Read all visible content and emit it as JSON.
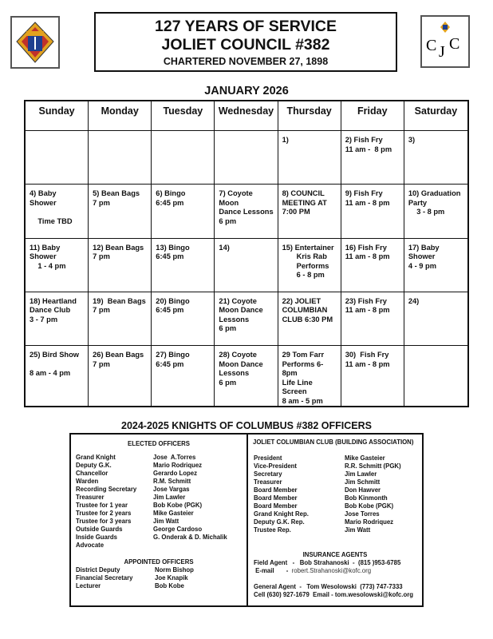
{
  "header": {
    "line1": "127 YEARS OF SERVICE",
    "line2": "JOLIET COUNCIL #382",
    "line3": "CHARTERED NOVEMBER 27, 1898"
  },
  "logos": {
    "left": "K of C",
    "right": "CJC"
  },
  "calendar": {
    "title": "JANUARY 2026",
    "days": [
      "Sunday",
      "Monday",
      "Tuesday",
      "Wednesday",
      "Thursday",
      "Friday",
      "Saturday"
    ],
    "cells": [
      "",
      "",
      "",
      "",
      "1)",
      "2) Fish Fry\n11 am -  8 pm",
      "3)",
      "4) Baby Shower\n\n    Time TBD",
      "5) Bean Bags\n7 pm",
      "6) Bingo\n6:45 pm",
      "7) Coyote Moon\nDance Lessons\n6 pm",
      "8) COUNCIL\nMEETING AT\n7:00 PM",
      "9) Fish Fry\n11 am - 8 pm",
      "10) Graduation\nParty\n    3 - 8 pm",
      "11) Baby\nShower\n    1 - 4 pm",
      "12) Bean Bags\n7 pm",
      "13) Bingo\n6:45 pm",
      "14)",
      "15) Entertainer\n       Kris Rab\n       Performs\n       6 - 8 pm",
      "16) Fish Fry\n11 am - 8 pm",
      "17) Baby\nShower\n4 - 9 pm",
      "18) Heartland\nDance Club\n3 - 7 pm",
      "19)  Bean Bags\n7 pm",
      "20) Bingo\n6:45 pm",
      "21) Coyote\nMoon Dance\nLessons\n6 pm",
      "22) JOLIET\nCOLUMBIAN\nCLUB 6:30 PM",
      "23) Fish Fry\n11 am - 8 pm",
      "24)",
      "25) Bird Show\n\n8 am - 4 pm",
      "26) Bean Bags\n7 pm",
      "27) Bingo\n6:45 pm",
      "28) Coyote\nMoon Dance\nLessons\n6 pm",
      "29 Tom Farr\nPerforms 6-8pm\nLife Line Screen\n8 am - 5 pm",
      "30)  Fish Fry\n11 am - 8 pm",
      ""
    ]
  },
  "officers": {
    "title": "2024-2025 KNIGHTS OF COLUMBUS #382 OFFICERS",
    "elected_title": "ELECTED OFFICERS",
    "elected": [
      [
        "Grand Knight",
        "Jose  A.Torres"
      ],
      [
        "Deputy G.K.",
        "Mario Rodriquez"
      ],
      [
        "Chancellor",
        "Gerardo Lopez"
      ],
      [
        "Warden",
        "R.M. Schmitt"
      ],
      [
        "Recording Secretary",
        "Jose Vargas"
      ],
      [
        "Treasurer",
        "Jim Lawler"
      ],
      [
        "Trustee for 1 year",
        "Bob Kobe (PGK)"
      ],
      [
        "Trustee for 2 years",
        "Mike Gasteier"
      ],
      [
        "Trustee for 3 years",
        "Jim Watt"
      ],
      [
        "Outside Guards",
        "George Cardoso"
      ],
      [
        "Inside Guards",
        "G. Onderak & D. Michalik"
      ],
      [
        "Advocate",
        ""
      ]
    ],
    "appointed_title": "APPOINTED OFFICERS",
    "appointed": [
      [
        "District Deputy",
        "Norm Bishop"
      ],
      [
        "Financial Secretary",
        "Joe Knapik"
      ],
      [
        "Lecturer",
        "Bob Kobe"
      ]
    ],
    "club_title": "JOLIET COLUMBIAN CLUB (BUILDING ASSOCIATION)",
    "club": [
      [
        "President",
        "Mike Gasteier"
      ],
      [
        "Vice-President",
        "R.R. Schmitt (PGK)"
      ],
      [
        "Secretary",
        "Jim Lawler"
      ],
      [
        "Treasurer",
        "Jim Schmitt"
      ],
      [
        "Board Member",
        "Don Hawver"
      ],
      [
        "Board Member",
        "Bob Kinmonth"
      ],
      [
        "Board Member",
        "Bob Kobe (PGK)"
      ],
      [
        "Grand Knight Rep.",
        "Jose Torres"
      ],
      [
        "Deputy G.K. Rep.",
        "Mario Rodriquez"
      ],
      [
        "Trustee Rep.",
        "Jim Watt"
      ]
    ],
    "insurance_title": "INSURANCE AGENTS",
    "field_agent": "Field Agent   -   Bob Strahanoski  -  (815 )953-6785",
    "email_label": " E-mail       -  ",
    "email": "robert.Strahanoski@kofc.org",
    "general_agent": "General Agent  -   Tom Wesolowski  (773) 747-7333",
    "cell": "Cell (630) 927-1679  Email - tom.wesolowski@kofc.org"
  }
}
